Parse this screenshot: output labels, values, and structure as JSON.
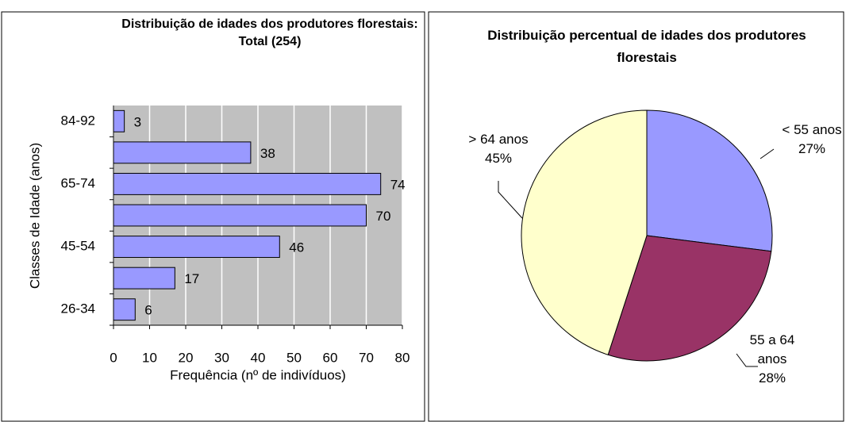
{
  "chart_data": [
    {
      "type": "barh",
      "title": "Distribuição de idades dos produtores florestais: Total (254)",
      "categories": [
        "26-34",
        null,
        "45-54",
        null,
        "65-74",
        null,
        "84-92"
      ],
      "values": [
        6,
        17,
        46,
        70,
        74,
        38,
        3
      ],
      "color": "#9999ff",
      "plot_background": "#c0c0c0",
      "grid": true,
      "xlim": [
        0,
        80
      ],
      "xticks": [
        0,
        10,
        20,
        30,
        40,
        50,
        60,
        70,
        80
      ],
      "xlabel": "Frequência (nº de indivíduos)",
      "ylabel": "Classes de Idade (anos)"
    },
    {
      "type": "pie",
      "title": "Distribuição percentual de idades dos produtores florestais",
      "categories": [
        "< 55 anos",
        "55 a 64 anos",
        "> 64 anos"
      ],
      "values": [
        27,
        28,
        45
      ],
      "value_labels": [
        "27%",
        "28%",
        "45%"
      ],
      "colors": [
        "#9999ff",
        "#993366",
        "#ffffcc"
      ]
    }
  ]
}
